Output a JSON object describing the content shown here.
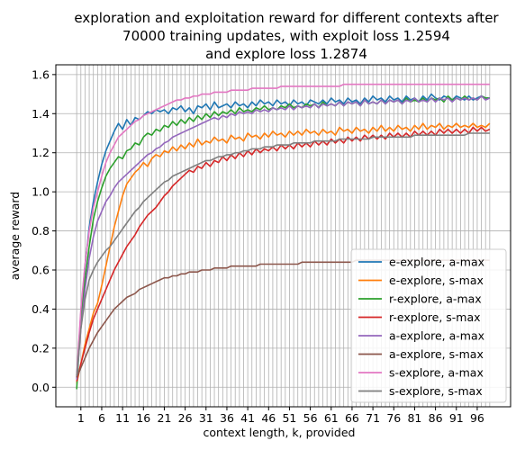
{
  "chart_data": {
    "type": "line",
    "title_lines": [
      "exploration and exploitation reward for different contexts after",
      "70000 training updates, with exploit loss 1.2594",
      "and explore loss 1.2874"
    ],
    "xlabel": "context length, $k$, provided",
    "xlabel_display": "context length, k, provided",
    "ylabel": "average reward",
    "xlim": [
      -5,
      104
    ],
    "ylim": [
      -0.1,
      1.65
    ],
    "x_ticks": [
      1,
      6,
      11,
      16,
      21,
      26,
      31,
      36,
      41,
      46,
      51,
      56,
      61,
      66,
      71,
      76,
      81,
      86,
      91,
      96
    ],
    "y_ticks": [
      "0.0",
      "0.2",
      "0.4",
      "0.6",
      "0.8",
      "1.0",
      "1.2",
      "1.4",
      "1.6"
    ],
    "grid": true,
    "legend_position": "lower right",
    "x": [
      0,
      1,
      2,
      3,
      4,
      5,
      6,
      7,
      8,
      9,
      10,
      11,
      12,
      13,
      14,
      15,
      16,
      17,
      18,
      19,
      20,
      21,
      22,
      23,
      24,
      25,
      26,
      27,
      28,
      29,
      30,
      31,
      32,
      33,
      34,
      35,
      36,
      37,
      38,
      39,
      40,
      41,
      42,
      43,
      44,
      45,
      46,
      47,
      48,
      49,
      50,
      51,
      52,
      53,
      54,
      55,
      56,
      57,
      58,
      59,
      60,
      61,
      62,
      63,
      64,
      65,
      66,
      67,
      68,
      69,
      70,
      71,
      72,
      73,
      74,
      75,
      76,
      77,
      78,
      79,
      80,
      81,
      82,
      83,
      84,
      85,
      86,
      87,
      88,
      89,
      90,
      91,
      92,
      93,
      94,
      95,
      96,
      97,
      98,
      99
    ],
    "series": [
      {
        "name": "e-explore, a-max",
        "color": "#1f77b4",
        "values": [
          0.05,
          0.38,
          0.62,
          0.82,
          0.95,
          1.05,
          1.14,
          1.21,
          1.26,
          1.31,
          1.35,
          1.32,
          1.37,
          1.34,
          1.38,
          1.37,
          1.39,
          1.41,
          1.4,
          1.42,
          1.41,
          1.42,
          1.4,
          1.43,
          1.42,
          1.44,
          1.41,
          1.43,
          1.4,
          1.44,
          1.43,
          1.45,
          1.42,
          1.46,
          1.43,
          1.44,
          1.45,
          1.43,
          1.46,
          1.44,
          1.45,
          1.43,
          1.46,
          1.44,
          1.47,
          1.45,
          1.46,
          1.44,
          1.47,
          1.45,
          1.46,
          1.44,
          1.47,
          1.45,
          1.46,
          1.44,
          1.47,
          1.46,
          1.45,
          1.47,
          1.45,
          1.48,
          1.46,
          1.47,
          1.45,
          1.48,
          1.46,
          1.47,
          1.45,
          1.48,
          1.46,
          1.49,
          1.47,
          1.48,
          1.46,
          1.49,
          1.47,
          1.48,
          1.46,
          1.49,
          1.47,
          1.48,
          1.46,
          1.49,
          1.47,
          1.5,
          1.48,
          1.47,
          1.49,
          1.48,
          1.47,
          1.49,
          1.48,
          1.47,
          1.49,
          1.47,
          1.48,
          1.49,
          1.48,
          1.48
        ]
      },
      {
        "name": "e-explore, s-max",
        "color": "#ff7f0e",
        "values": [
          0.02,
          0.12,
          0.22,
          0.3,
          0.38,
          0.43,
          0.52,
          0.62,
          0.72,
          0.82,
          0.9,
          0.98,
          1.04,
          1.07,
          1.1,
          1.12,
          1.15,
          1.13,
          1.17,
          1.19,
          1.18,
          1.21,
          1.2,
          1.23,
          1.21,
          1.24,
          1.22,
          1.25,
          1.23,
          1.27,
          1.24,
          1.26,
          1.25,
          1.28,
          1.26,
          1.27,
          1.25,
          1.29,
          1.27,
          1.28,
          1.26,
          1.3,
          1.28,
          1.29,
          1.27,
          1.3,
          1.28,
          1.31,
          1.29,
          1.3,
          1.28,
          1.31,
          1.29,
          1.31,
          1.29,
          1.32,
          1.3,
          1.31,
          1.29,
          1.32,
          1.3,
          1.31,
          1.29,
          1.33,
          1.31,
          1.32,
          1.3,
          1.33,
          1.31,
          1.32,
          1.3,
          1.33,
          1.31,
          1.34,
          1.31,
          1.33,
          1.31,
          1.34,
          1.32,
          1.33,
          1.31,
          1.34,
          1.32,
          1.35,
          1.32,
          1.34,
          1.33,
          1.35,
          1.32,
          1.34,
          1.33,
          1.35,
          1.33,
          1.34,
          1.33,
          1.35,
          1.33,
          1.34,
          1.33,
          1.35
        ]
      },
      {
        "name": "r-explore, a-max",
        "color": "#2ca02c",
        "values": [
          -0.01,
          0.35,
          0.55,
          0.72,
          0.86,
          0.95,
          1.02,
          1.08,
          1.12,
          1.15,
          1.18,
          1.17,
          1.21,
          1.22,
          1.25,
          1.24,
          1.28,
          1.3,
          1.29,
          1.32,
          1.31,
          1.34,
          1.33,
          1.36,
          1.34,
          1.37,
          1.35,
          1.38,
          1.36,
          1.39,
          1.37,
          1.4,
          1.38,
          1.41,
          1.39,
          1.41,
          1.4,
          1.42,
          1.4,
          1.43,
          1.41,
          1.42,
          1.41,
          1.43,
          1.42,
          1.44,
          1.42,
          1.43,
          1.42,
          1.44,
          1.43,
          1.45,
          1.43,
          1.44,
          1.43,
          1.45,
          1.44,
          1.45,
          1.43,
          1.46,
          1.44,
          1.45,
          1.44,
          1.46,
          1.44,
          1.46,
          1.45,
          1.46,
          1.44,
          1.47,
          1.45,
          1.46,
          1.45,
          1.47,
          1.45,
          1.47,
          1.46,
          1.47,
          1.45,
          1.48,
          1.46,
          1.47,
          1.46,
          1.48,
          1.46,
          1.48,
          1.47,
          1.48,
          1.46,
          1.49,
          1.47,
          1.48,
          1.47,
          1.49,
          1.47,
          1.48,
          1.47,
          1.49,
          1.48,
          1.48
        ]
      },
      {
        "name": "r-explore, s-max",
        "color": "#d62728",
        "values": [
          0.03,
          0.12,
          0.2,
          0.28,
          0.35,
          0.4,
          0.45,
          0.5,
          0.55,
          0.6,
          0.64,
          0.68,
          0.72,
          0.75,
          0.78,
          0.82,
          0.85,
          0.88,
          0.9,
          0.92,
          0.95,
          0.98,
          1.0,
          1.03,
          1.05,
          1.07,
          1.09,
          1.11,
          1.1,
          1.13,
          1.12,
          1.15,
          1.13,
          1.16,
          1.15,
          1.18,
          1.16,
          1.19,
          1.17,
          1.2,
          1.18,
          1.21,
          1.19,
          1.22,
          1.2,
          1.22,
          1.21,
          1.23,
          1.21,
          1.24,
          1.22,
          1.24,
          1.22,
          1.25,
          1.23,
          1.25,
          1.23,
          1.26,
          1.24,
          1.26,
          1.24,
          1.27,
          1.25,
          1.27,
          1.25,
          1.28,
          1.26,
          1.28,
          1.26,
          1.29,
          1.27,
          1.29,
          1.27,
          1.29,
          1.27,
          1.3,
          1.28,
          1.3,
          1.28,
          1.3,
          1.28,
          1.31,
          1.29,
          1.31,
          1.29,
          1.31,
          1.29,
          1.32,
          1.3,
          1.32,
          1.3,
          1.32,
          1.3,
          1.32,
          1.3,
          1.33,
          1.31,
          1.33,
          1.31,
          1.32
        ]
      },
      {
        "name": "a-explore, a-max",
        "color": "#9467bd",
        "values": [
          0.04,
          0.3,
          0.5,
          0.66,
          0.77,
          0.85,
          0.9,
          0.95,
          0.98,
          1.02,
          1.05,
          1.07,
          1.09,
          1.11,
          1.13,
          1.15,
          1.17,
          1.19,
          1.2,
          1.22,
          1.23,
          1.25,
          1.26,
          1.28,
          1.29,
          1.3,
          1.31,
          1.32,
          1.33,
          1.34,
          1.35,
          1.36,
          1.37,
          1.38,
          1.37,
          1.39,
          1.38,
          1.4,
          1.39,
          1.41,
          1.4,
          1.41,
          1.4,
          1.42,
          1.41,
          1.42,
          1.41,
          1.43,
          1.42,
          1.43,
          1.42,
          1.44,
          1.42,
          1.44,
          1.43,
          1.44,
          1.43,
          1.45,
          1.43,
          1.45,
          1.44,
          1.45,
          1.44,
          1.46,
          1.44,
          1.46,
          1.45,
          1.46,
          1.44,
          1.47,
          1.45,
          1.46,
          1.45,
          1.47,
          1.45,
          1.47,
          1.46,
          1.47,
          1.45,
          1.47,
          1.46,
          1.48,
          1.46,
          1.47,
          1.46,
          1.48,
          1.46,
          1.48,
          1.47,
          1.48,
          1.46,
          1.48,
          1.47,
          1.48,
          1.47,
          1.48,
          1.47,
          1.49,
          1.47,
          1.48
        ]
      },
      {
        "name": "a-explore, s-max",
        "color": "#8c564b",
        "values": [
          0.05,
          0.1,
          0.15,
          0.2,
          0.24,
          0.28,
          0.31,
          0.34,
          0.37,
          0.4,
          0.42,
          0.44,
          0.46,
          0.47,
          0.48,
          0.5,
          0.51,
          0.52,
          0.53,
          0.54,
          0.55,
          0.56,
          0.56,
          0.57,
          0.57,
          0.58,
          0.58,
          0.59,
          0.59,
          0.59,
          0.6,
          0.6,
          0.6,
          0.61,
          0.61,
          0.61,
          0.61,
          0.62,
          0.62,
          0.62,
          0.62,
          0.62,
          0.62,
          0.62,
          0.63,
          0.63,
          0.63,
          0.63,
          0.63,
          0.63,
          0.63,
          0.63,
          0.63,
          0.63,
          0.64,
          0.64,
          0.64,
          0.64,
          0.64,
          0.64,
          0.64,
          0.64,
          0.64,
          0.64,
          0.64,
          0.64,
          0.64,
          0.65,
          0.65,
          0.65,
          0.65,
          0.65,
          0.65,
          0.65,
          0.65,
          0.65,
          0.65,
          0.65,
          0.65,
          0.65,
          0.65,
          0.65,
          0.65,
          0.65,
          0.65,
          0.65,
          0.65,
          0.65,
          0.65,
          0.65,
          0.65,
          0.65,
          0.65,
          0.65,
          0.65,
          0.65,
          0.65,
          0.65,
          0.65,
          0.65
        ]
      },
      {
        "name": "s-explore, a-max",
        "color": "#e377c2",
        "values": [
          0.06,
          0.4,
          0.63,
          0.8,
          0.92,
          1.0,
          1.08,
          1.15,
          1.2,
          1.24,
          1.28,
          1.3,
          1.32,
          1.34,
          1.36,
          1.37,
          1.39,
          1.4,
          1.41,
          1.42,
          1.43,
          1.44,
          1.45,
          1.46,
          1.47,
          1.47,
          1.48,
          1.48,
          1.49,
          1.49,
          1.5,
          1.5,
          1.5,
          1.51,
          1.51,
          1.51,
          1.51,
          1.52,
          1.52,
          1.52,
          1.52,
          1.52,
          1.53,
          1.53,
          1.53,
          1.53,
          1.53,
          1.53,
          1.53,
          1.54,
          1.54,
          1.54,
          1.54,
          1.54,
          1.54,
          1.54,
          1.54,
          1.54,
          1.54,
          1.54,
          1.54,
          1.54,
          1.54,
          1.54,
          1.55,
          1.55,
          1.55,
          1.55,
          1.55,
          1.55,
          1.55,
          1.55,
          1.55,
          1.55,
          1.55,
          1.55,
          1.55,
          1.55,
          1.55,
          1.55,
          1.55,
          1.55,
          1.55,
          1.55,
          1.55,
          1.55,
          1.55,
          1.55,
          1.55,
          1.55,
          1.55,
          1.55,
          1.55,
          1.55,
          1.55,
          1.55,
          1.55,
          1.55,
          1.55,
          1.55
        ]
      },
      {
        "name": "s-explore, s-max",
        "color": "#7f7f7f",
        "values": [
          0.06,
          0.3,
          0.45,
          0.55,
          0.6,
          0.64,
          0.67,
          0.7,
          0.72,
          0.75,
          0.78,
          0.81,
          0.84,
          0.87,
          0.9,
          0.92,
          0.95,
          0.97,
          0.99,
          1.01,
          1.03,
          1.05,
          1.06,
          1.08,
          1.09,
          1.1,
          1.11,
          1.12,
          1.13,
          1.14,
          1.15,
          1.16,
          1.16,
          1.17,
          1.18,
          1.18,
          1.19,
          1.19,
          1.2,
          1.2,
          1.21,
          1.21,
          1.22,
          1.22,
          1.22,
          1.23,
          1.23,
          1.23,
          1.24,
          1.24,
          1.24,
          1.24,
          1.25,
          1.25,
          1.25,
          1.25,
          1.25,
          1.26,
          1.26,
          1.26,
          1.26,
          1.26,
          1.26,
          1.27,
          1.27,
          1.27,
          1.27,
          1.27,
          1.27,
          1.27,
          1.27,
          1.28,
          1.28,
          1.28,
          1.28,
          1.28,
          1.28,
          1.28,
          1.28,
          1.28,
          1.28,
          1.29,
          1.29,
          1.29,
          1.29,
          1.29,
          1.29,
          1.29,
          1.29,
          1.29,
          1.29,
          1.29,
          1.29,
          1.29,
          1.3,
          1.3,
          1.3,
          1.3,
          1.3,
          1.3
        ]
      }
    ]
  }
}
